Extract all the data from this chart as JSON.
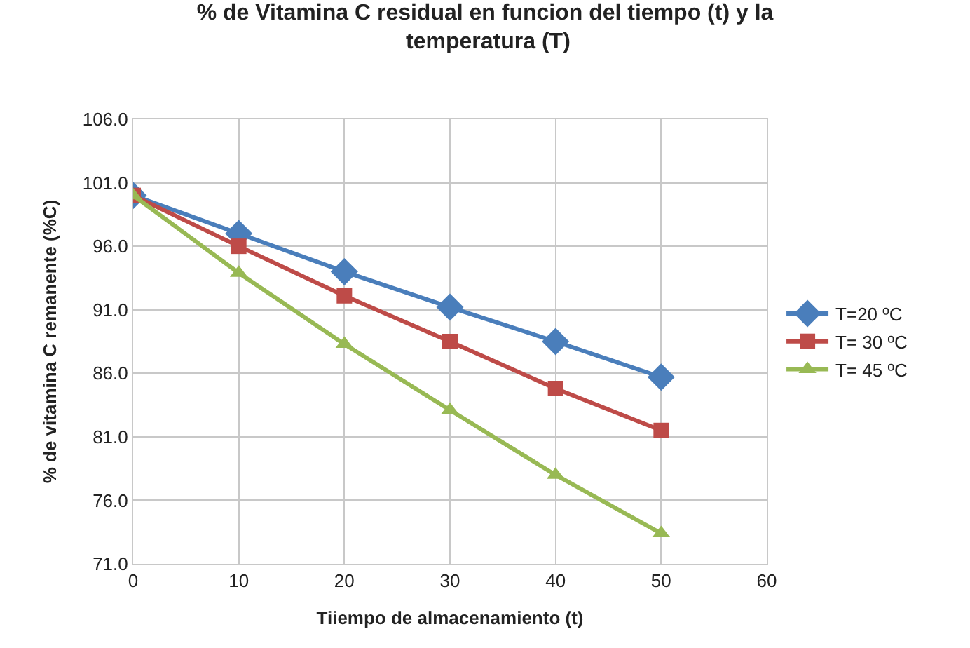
{
  "chart_data": {
    "type": "line",
    "title": "% de Vitamina C residual en funcion del tiempo (t) y la temperatura (T)",
    "xlabel": "Tiiempo de almacenamiento (t)",
    "ylabel": "% de vitamina C remanente (%C)",
    "x": [
      0,
      10,
      20,
      30,
      40,
      50
    ],
    "series": [
      {
        "name": "T=20 ºC",
        "color": "#4a7ebb",
        "marker": "diamond",
        "values": [
          100.0,
          97.0,
          94.0,
          91.2,
          88.5,
          85.7
        ]
      },
      {
        "name": "T= 30 ºC",
        "color": "#be4b48",
        "marker": "square",
        "values": [
          100.0,
          96.0,
          92.1,
          88.5,
          84.8,
          81.5
        ]
      },
      {
        "name": "T= 45 ºC",
        "color": "#98b954",
        "marker": "triangle",
        "values": [
          100.0,
          93.9,
          88.3,
          83.1,
          78.0,
          73.4
        ]
      }
    ],
    "xlim": [
      0,
      60
    ],
    "xticks": [
      0,
      10,
      20,
      30,
      40,
      50,
      60
    ],
    "ylim": [
      71.0,
      106.0
    ],
    "yticks": [
      {
        "value": 71,
        "label": "71.0"
      },
      {
        "value": 76,
        "label": "76.0"
      },
      {
        "value": 81,
        "label": "81.0"
      },
      {
        "value": 86,
        "label": "86.0"
      },
      {
        "value": 91,
        "label": "91.0"
      },
      {
        "value": 96,
        "label": "96.0"
      },
      {
        "value": 101,
        "label": "101.0"
      },
      {
        "value": 106,
        "label": "106.0"
      }
    ],
    "grid": true,
    "legend": "right",
    "line_style": "solid"
  }
}
